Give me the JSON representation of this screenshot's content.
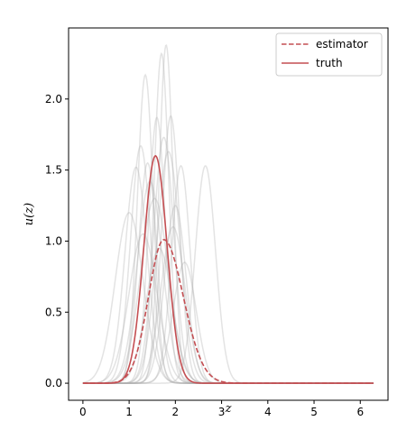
{
  "chart_data": {
    "type": "line",
    "xlabel": "z",
    "ylabel": "u(z)",
    "xlim": [
      -0.31,
      6.6
    ],
    "ylim": [
      -0.12,
      2.5
    ],
    "xticks": [
      "0",
      "1",
      "2",
      "3",
      "4",
      "5",
      "6"
    ],
    "yticks": [
      "0.0",
      "0.5",
      "1.0",
      "1.5",
      "2.0"
    ],
    "grid": false,
    "legend": {
      "placement": "top-right",
      "entries": [
        {
          "label": "estimator",
          "style": "dashed",
          "color": "#c44e52"
        },
        {
          "label": "truth",
          "style": "solid",
          "color": "#c44e52"
        }
      ]
    },
    "x_domain": [
      0,
      6.283
    ],
    "estimator": {
      "shape": "right-skewed peak",
      "mode": 1.75,
      "peak": 1.01
    },
    "truth": {
      "shape": "gaussian",
      "mu": 1.57,
      "sigma": 0.25,
      "peak": 1.6
    },
    "samples": [
      {
        "mu": 1.35,
        "sigma": 0.17,
        "peak": 2.17
      },
      {
        "mu": 1.7,
        "sigma": 0.16,
        "peak": 2.32
      },
      {
        "mu": 1.8,
        "sigma": 0.15,
        "peak": 2.38
      },
      {
        "mu": 1.6,
        "sigma": 0.18,
        "peak": 1.87
      },
      {
        "mu": 1.9,
        "sigma": 0.19,
        "peak": 1.88
      },
      {
        "mu": 1.25,
        "sigma": 0.22,
        "peak": 1.67
      },
      {
        "mu": 1.15,
        "sigma": 0.24,
        "peak": 1.52
      },
      {
        "mu": 2.12,
        "sigma": 0.2,
        "peak": 1.53
      },
      {
        "mu": 2.65,
        "sigma": 0.22,
        "peak": 1.53
      },
      {
        "mu": 1.45,
        "sigma": 0.27,
        "peak": 1.42
      },
      {
        "mu": 1.85,
        "sigma": 0.25,
        "peak": 1.63
      },
      {
        "mu": 1.0,
        "sigma": 0.3,
        "peak": 1.2
      },
      {
        "mu": 1.55,
        "sigma": 0.3,
        "peak": 1.3
      },
      {
        "mu": 1.75,
        "sigma": 0.22,
        "peak": 1.73
      },
      {
        "mu": 2.0,
        "sigma": 0.23,
        "peak": 1.25
      },
      {
        "mu": 1.3,
        "sigma": 0.3,
        "peak": 1.05
      },
      {
        "mu": 1.65,
        "sigma": 0.28,
        "peak": 0.95
      },
      {
        "mu": 1.95,
        "sigma": 0.26,
        "peak": 1.1
      },
      {
        "mu": 1.4,
        "sigma": 0.2,
        "peak": 1.55
      },
      {
        "mu": 2.2,
        "sigma": 0.25,
        "peak": 0.85
      }
    ]
  }
}
